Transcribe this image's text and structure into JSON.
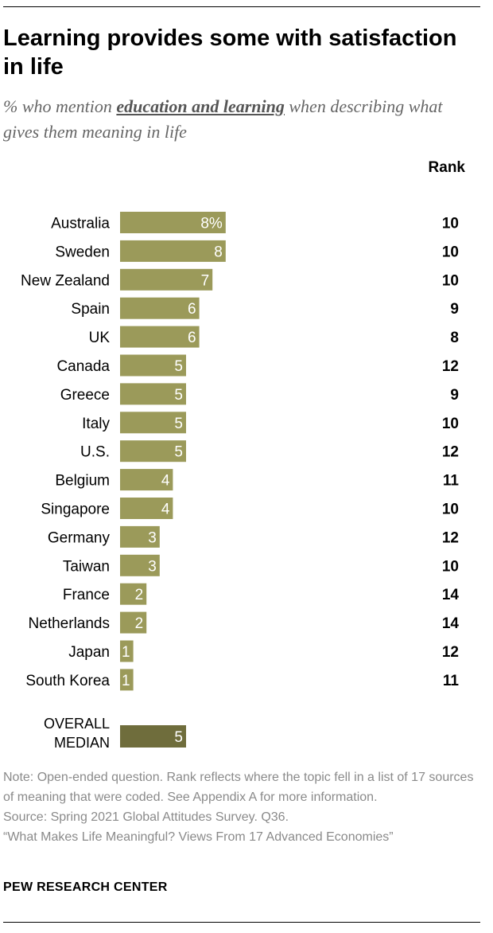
{
  "title": "Learning provides some with satisfaction in life",
  "subtitle": {
    "prefix": "% who mention ",
    "emphasis": "education and learning",
    "suffix": " when describing what gives them meaning in life"
  },
  "rank_header": "Rank",
  "colors": {
    "bar": "#9b9a5a",
    "median_bar": "#6f6d3c",
    "bar_label": "#ffffff",
    "note_text": "#8a8a8a"
  },
  "chart_data": {
    "type": "bar",
    "orientation": "horizontal",
    "value_suffix_first": "%",
    "categories": [
      "Australia",
      "Sweden",
      "New Zealand",
      "Spain",
      "UK",
      "Canada",
      "Greece",
      "Italy",
      "U.S.",
      "Belgium",
      "Singapore",
      "Germany",
      "Taiwan",
      "France",
      "Netherlands",
      "Japan",
      "South Korea"
    ],
    "values": [
      8,
      8,
      7,
      6,
      6,
      5,
      5,
      5,
      5,
      4,
      4,
      3,
      3,
      2,
      2,
      1,
      1
    ],
    "ranks": [
      10,
      10,
      10,
      9,
      8,
      12,
      9,
      10,
      12,
      11,
      10,
      12,
      10,
      14,
      14,
      12,
      11
    ],
    "median": {
      "label": [
        "OVERALL",
        "MEDIAN"
      ],
      "value": 5
    }
  },
  "notes": {
    "note": "Note: Open-ended question. Rank reflects where the topic fell in a list of 17 sources of meaning that were coded. See Appendix A for more information.",
    "source": "Source: Spring 2021 Global Attitudes Survey. Q36.",
    "report": "“What Makes Life Meaningful? Views From 17 Advanced Economies”"
  },
  "brand": "PEW RESEARCH CENTER"
}
